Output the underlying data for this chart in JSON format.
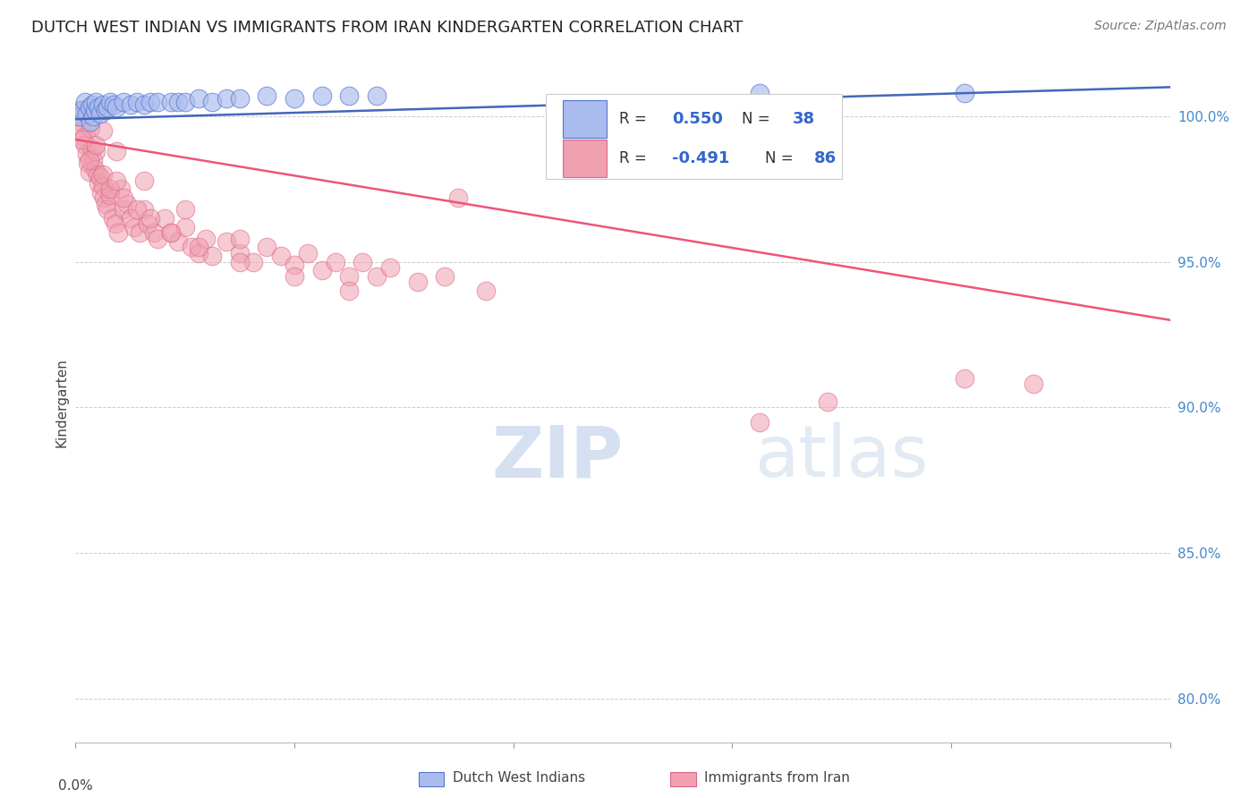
{
  "title": "DUTCH WEST INDIAN VS IMMIGRANTS FROM IRAN KINDERGARTEN CORRELATION CHART",
  "source": "Source: ZipAtlas.com",
  "ylabel": "Kindergarten",
  "y_ticks": [
    80.0,
    85.0,
    90.0,
    95.0,
    100.0
  ],
  "y_tick_labels": [
    "80.0%",
    "85.0%",
    "90.0%",
    "95.0%",
    "100.0%"
  ],
  "x_min": 0.0,
  "x_max": 80.0,
  "y_min": 78.5,
  "y_max": 101.8,
  "watermark_zip": "ZIP",
  "watermark_atlas": "atlas",
  "series1_color": "#aabbee",
  "series2_color": "#f0a0b0",
  "series1_edge": "#5577cc",
  "series2_edge": "#dd6688",
  "trendline1_color": "#4466bb",
  "trendline2_color": "#ee5577",
  "trendline1_y0": 99.9,
  "trendline1_y1": 101.0,
  "trendline2_y0": 99.2,
  "trendline2_y1": 93.0,
  "blue_scatter_x": [
    0.3,
    0.5,
    0.7,
    0.8,
    1.0,
    1.1,
    1.2,
    1.3,
    1.4,
    1.5,
    1.7,
    1.8,
    2.0,
    2.2,
    2.3,
    2.5,
    2.8,
    3.0,
    3.5,
    4.0,
    4.5,
    5.0,
    5.5,
    6.0,
    7.0,
    7.5,
    8.0,
    9.0,
    10.0,
    11.0,
    12.0,
    14.0,
    16.0,
    18.0,
    20.0,
    22.0,
    50.0,
    65.0
  ],
  "blue_scatter_y": [
    100.0,
    100.2,
    100.5,
    100.1,
    100.3,
    99.8,
    100.4,
    100.0,
    100.2,
    100.5,
    100.3,
    100.1,
    100.4,
    100.2,
    100.3,
    100.5,
    100.4,
    100.3,
    100.5,
    100.4,
    100.5,
    100.4,
    100.5,
    100.5,
    100.5,
    100.5,
    100.5,
    100.6,
    100.5,
    100.6,
    100.6,
    100.7,
    100.6,
    100.7,
    100.7,
    100.7,
    100.8,
    100.8
  ],
  "pink_scatter_x": [
    0.2,
    0.3,
    0.4,
    0.5,
    0.6,
    0.7,
    0.8,
    0.9,
    1.0,
    1.1,
    1.2,
    1.3,
    1.4,
    1.5,
    1.6,
    1.7,
    1.8,
    1.9,
    2.0,
    2.1,
    2.2,
    2.3,
    2.5,
    2.7,
    2.9,
    3.1,
    3.3,
    3.5,
    3.8,
    4.0,
    4.3,
    4.7,
    5.0,
    5.3,
    5.7,
    6.0,
    6.5,
    7.0,
    7.5,
    8.0,
    8.5,
    9.0,
    9.5,
    10.0,
    11.0,
    12.0,
    13.0,
    14.0,
    15.0,
    16.0,
    17.0,
    18.0,
    19.0,
    20.0,
    21.0,
    22.0,
    23.0,
    25.0,
    27.0,
    30.0,
    0.5,
    1.0,
    1.5,
    2.0,
    2.5,
    3.0,
    3.5,
    4.5,
    5.5,
    7.0,
    9.0,
    12.0,
    16.0,
    20.0,
    1.2,
    2.0,
    3.0,
    5.0,
    8.0,
    12.0,
    28.0,
    50.0,
    55.0,
    65.0,
    70.0
  ],
  "pink_scatter_y": [
    100.0,
    100.2,
    99.8,
    99.5,
    99.3,
    99.0,
    98.7,
    98.4,
    98.1,
    99.6,
    98.9,
    98.5,
    98.2,
    98.8,
    98.0,
    97.7,
    97.9,
    97.4,
    97.6,
    97.2,
    97.0,
    96.8,
    97.3,
    96.5,
    96.3,
    96.0,
    97.5,
    96.8,
    97.0,
    96.5,
    96.2,
    96.0,
    96.8,
    96.3,
    96.0,
    95.8,
    96.5,
    96.0,
    95.7,
    96.2,
    95.5,
    95.3,
    95.8,
    95.2,
    95.7,
    95.3,
    95.0,
    95.5,
    95.2,
    94.9,
    95.3,
    94.7,
    95.0,
    94.5,
    95.0,
    94.5,
    94.8,
    94.3,
    94.5,
    94.0,
    99.2,
    98.5,
    99.0,
    98.0,
    97.5,
    97.8,
    97.2,
    96.8,
    96.5,
    96.0,
    95.5,
    95.0,
    94.5,
    94.0,
    100.3,
    99.5,
    98.8,
    97.8,
    96.8,
    95.8,
    97.2,
    89.5,
    90.2,
    91.0,
    90.8
  ]
}
